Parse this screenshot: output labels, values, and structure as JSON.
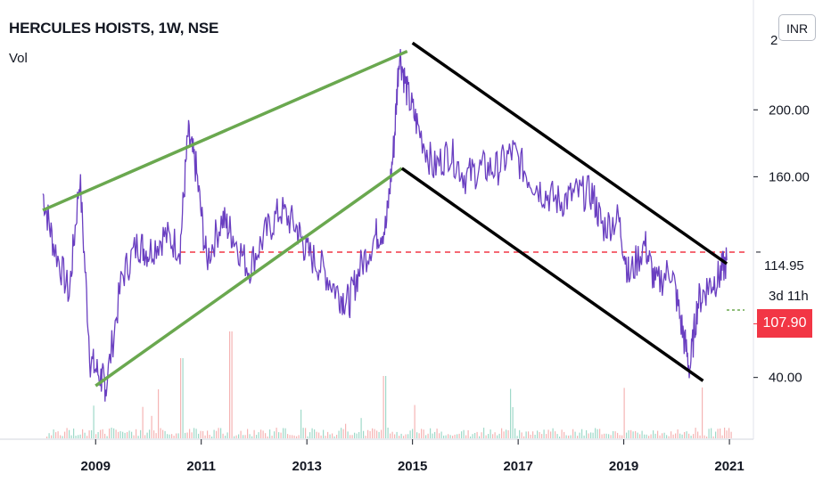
{
  "header": {
    "title": "HERCULES HOISTS, 1W, NSE",
    "indicator_label": "Vol",
    "currency_button": "INR"
  },
  "price_scale": {
    "top_partial_label": "2",
    "labels": [
      "200.00",
      "160.00",
      "114.95",
      "40.00"
    ],
    "countdown": "3d 11h",
    "last_price": "107.90"
  },
  "colors": {
    "price_line": "#6a3fc1",
    "trend_green": "#6aa84f",
    "channel_black": "#000000",
    "resistance_red": "#f23645",
    "last_price_badge": "#f23645"
  },
  "chart_data": {
    "type": "line",
    "title": "HERCULES HOISTS, 1W, NSE",
    "xlabel": "",
    "ylabel": "",
    "x_tick_labels": [
      "2009",
      "2011",
      "2013",
      "2015",
      "2017",
      "2019",
      "2021"
    ],
    "y_tick_labels": [
      "40.00",
      "114.95",
      "160.00",
      "200.00"
    ],
    "xlim": [
      2008.0,
      2021.1
    ],
    "ylim": [
      10,
      255
    ],
    "grid": false,
    "series": [
      {
        "values_x": [
          2008.0,
          2008.2,
          2008.5,
          2008.7,
          2008.9,
          2009.1,
          2009.2,
          2009.5,
          2009.8,
          2010.0,
          2010.3,
          2010.6,
          2010.75,
          2010.9,
          2011.1,
          2011.4,
          2011.6,
          2011.9,
          2012.2,
          2012.5,
          2012.8,
          2013.0,
          2013.3,
          2013.6,
          2013.8,
          2014.0,
          2014.3,
          2014.5,
          2014.65,
          2014.75,
          2014.9,
          2015.1,
          2015.4,
          2015.7,
          2016.0,
          2016.3,
          2016.6,
          2016.9,
          2017.2,
          2017.5,
          2017.8,
          2018.1,
          2018.4,
          2018.6,
          2018.9,
          2019.1,
          2019.4,
          2019.6,
          2019.9,
          2020.1,
          2020.25,
          2020.4,
          2020.6,
          2020.8,
          2020.95
        ],
        "values_y": [
          150,
          120,
          90,
          160,
          50,
          40,
          35,
          100,
          120,
          115,
          125,
          118,
          185,
          165,
          110,
          135,
          125,
          105,
          125,
          140,
          130,
          115,
          105,
          90,
          85,
          105,
          125,
          130,
          180,
          235,
          210,
          190,
          165,
          175,
          160,
          165,
          165,
          175,
          160,
          150,
          145,
          150,
          150,
          130,
          135,
          100,
          120,
          95,
          105,
          70,
          45,
          85,
          95,
          100,
          110
        ]
      }
    ],
    "annotations": {
      "resistance_level": 114.95,
      "last_close": 107.9,
      "upper_green_trendline": [
        [
          2008.0,
          140
        ],
        [
          2014.9,
          235
        ]
      ],
      "lower_green_trendline": [
        [
          2009.0,
          35
        ],
        [
          2014.8,
          165
        ]
      ],
      "channel_upper": [
        [
          2015.0,
          240
        ],
        [
          2020.95,
          108
        ]
      ],
      "channel_lower": [
        [
          2014.8,
          165
        ],
        [
          2020.5,
          38
        ]
      ]
    }
  }
}
